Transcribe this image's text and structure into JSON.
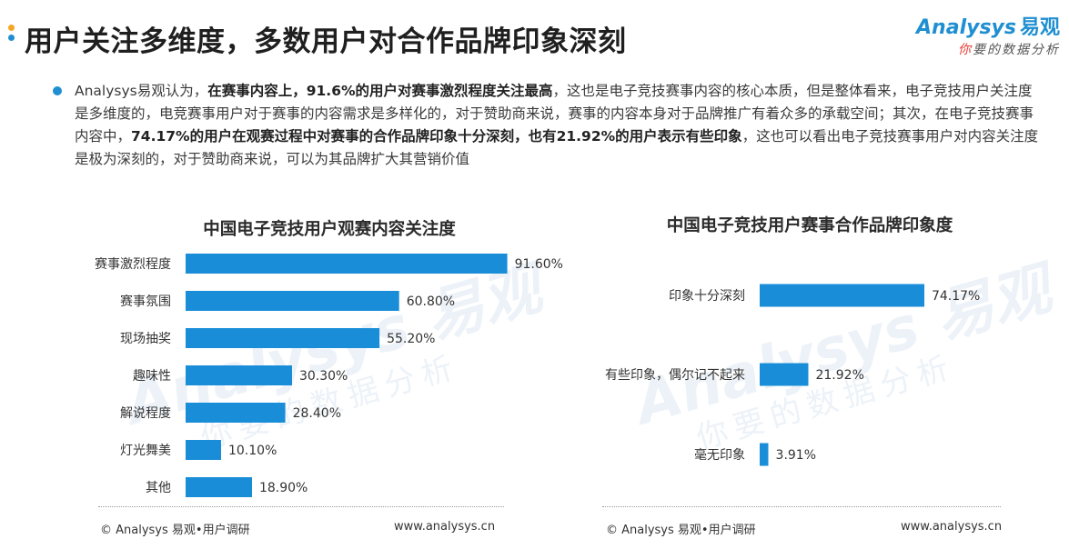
{
  "header": {
    "title": "用户关注多维度，多数用户对合作品牌印象深刻",
    "dot_colors": [
      "#f5a623",
      "#1f8fd1"
    ]
  },
  "logo": {
    "brand_latin": "Analysys",
    "brand_cn": "易观",
    "tagline_first": "你",
    "tagline_rest": "要的数据分析"
  },
  "summary": {
    "segments": [
      {
        "text": "Analysys易观认为，",
        "bold": false
      },
      {
        "text": "在赛事内容上，91.6%的用户对赛事激烈程度关注最高",
        "bold": true
      },
      {
        "text": "，这也是电子竞技赛事内容的核心本质，但是整体看来，电子竞技用户关注度是多维度的，电竞赛事用户对于赛事的内容需求是多样化的，对于赞助商来说，赛事的内容本身对于品牌推广有着众多的承载空间；其次，在电子竞技赛事内容中，",
        "bold": false
      },
      {
        "text": "74.17%的用户在观赛过程中对赛事的合作品牌印象十分深刻，也有21.92%的用户表示有些印象",
        "bold": true
      },
      {
        "text": "，这也可以看出电子竞技赛事用户对内容关注度是极为深刻的，对于赞助商来说，可以为其品牌扩大其营销价值",
        "bold": false
      }
    ]
  },
  "footer": {
    "left_text": "© Analysys 易观•用户调研",
    "right_text": "www.analysys.cn"
  },
  "colors": {
    "bar": "#1a8dd8",
    "accent": "#1f8fd1",
    "text": "#333333"
  },
  "chart_data": [
    {
      "type": "bar",
      "orientation": "horizontal",
      "title": "中国电子竞技用户观赛内容关注度",
      "categories": [
        "赛事激烈程度",
        "赛事氛围",
        "现场抽奖",
        "趣味性",
        "解说程度",
        "灯光舞美",
        "其他"
      ],
      "values": [
        91.6,
        60.8,
        55.2,
        30.3,
        28.4,
        10.1,
        18.9
      ],
      "labels": [
        "91.60%",
        "60.80%",
        "55.20%",
        "30.30%",
        "28.40%",
        "10.10%",
        "18.90%"
      ],
      "unit": "%",
      "xlim": [
        0,
        100
      ],
      "grid": false,
      "legend": "none"
    },
    {
      "type": "bar",
      "orientation": "horizontal",
      "title": "中国电子竞技用户赛事合作品牌印象度",
      "categories": [
        "印象十分深刻",
        "有些印象，偶尔记不起来",
        "毫无印象"
      ],
      "values": [
        74.17,
        21.92,
        3.91
      ],
      "labels": [
        "74.17%",
        "21.92%",
        "3.91%"
      ],
      "unit": "%",
      "xlim": [
        0,
        100
      ],
      "grid": false,
      "legend": "none"
    }
  ]
}
